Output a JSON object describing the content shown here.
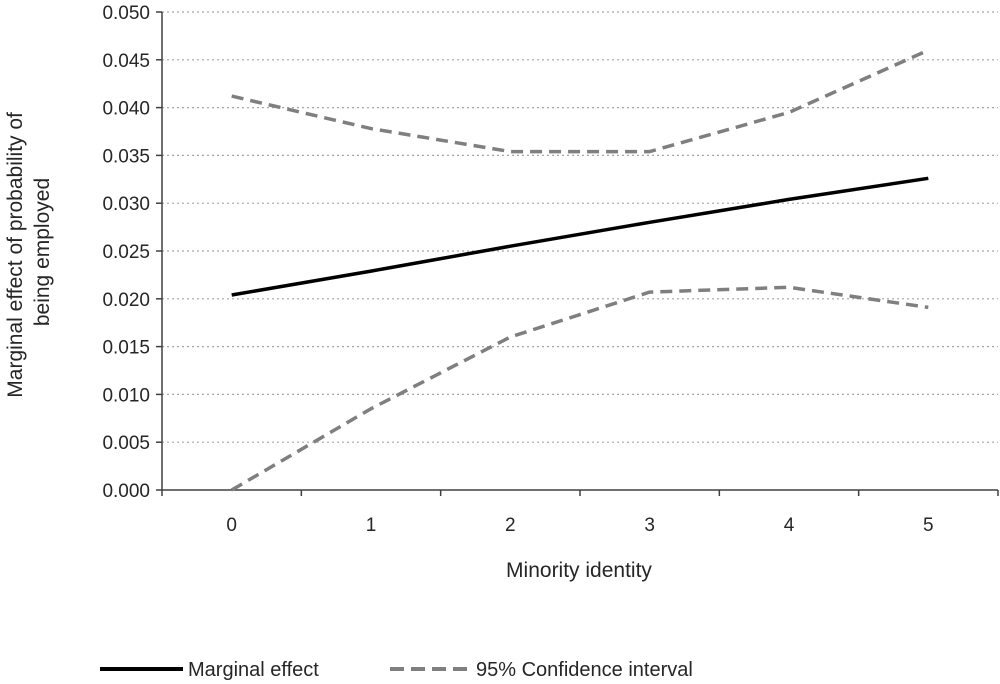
{
  "chart_data": {
    "type": "line",
    "xlabel": "Minority identity",
    "ylabel_lines": [
      "Marginal effect of probability of",
      "being employed"
    ],
    "x": [
      0,
      1,
      2,
      3,
      4,
      5
    ],
    "x_tick_labels": [
      "0",
      "1",
      "2",
      "3",
      "4",
      "5"
    ],
    "y_tick_labels": [
      "0.000",
      "0.005",
      "0.010",
      "0.015",
      "0.020",
      "0.025",
      "0.030",
      "0.035",
      "0.040",
      "0.045",
      "0.050"
    ],
    "ylim": [
      0,
      0.05
    ],
    "xlim": [
      -0.5,
      5.5
    ],
    "grid": "horizontal dotted",
    "legend_position": "bottom",
    "series": [
      {
        "name": "Marginal effect",
        "style": "solid",
        "color": "#000000",
        "values": [
          0.0204,
          0.0229,
          0.0255,
          0.028,
          0.0304,
          0.0326
        ]
      },
      {
        "name": "95% Confidence interval",
        "style": "dashed",
        "color": "#7f7f7f",
        "values": [
          0.0412,
          0.0378,
          0.0354,
          0.0354,
          0.0395,
          0.046
        ]
      },
      {
        "name": "",
        "style": "dashed",
        "color": "#7f7f7f",
        "values": [
          0.0,
          0.0085,
          0.016,
          0.0207,
          0.0212,
          0.0191
        ]
      }
    ]
  },
  "legend": {
    "items": [
      {
        "label": "Marginal effect",
        "color": "#000000",
        "style": "solid"
      },
      {
        "label": "95% Confidence interval",
        "color": "#7f7f7f",
        "style": "dashed"
      }
    ]
  }
}
